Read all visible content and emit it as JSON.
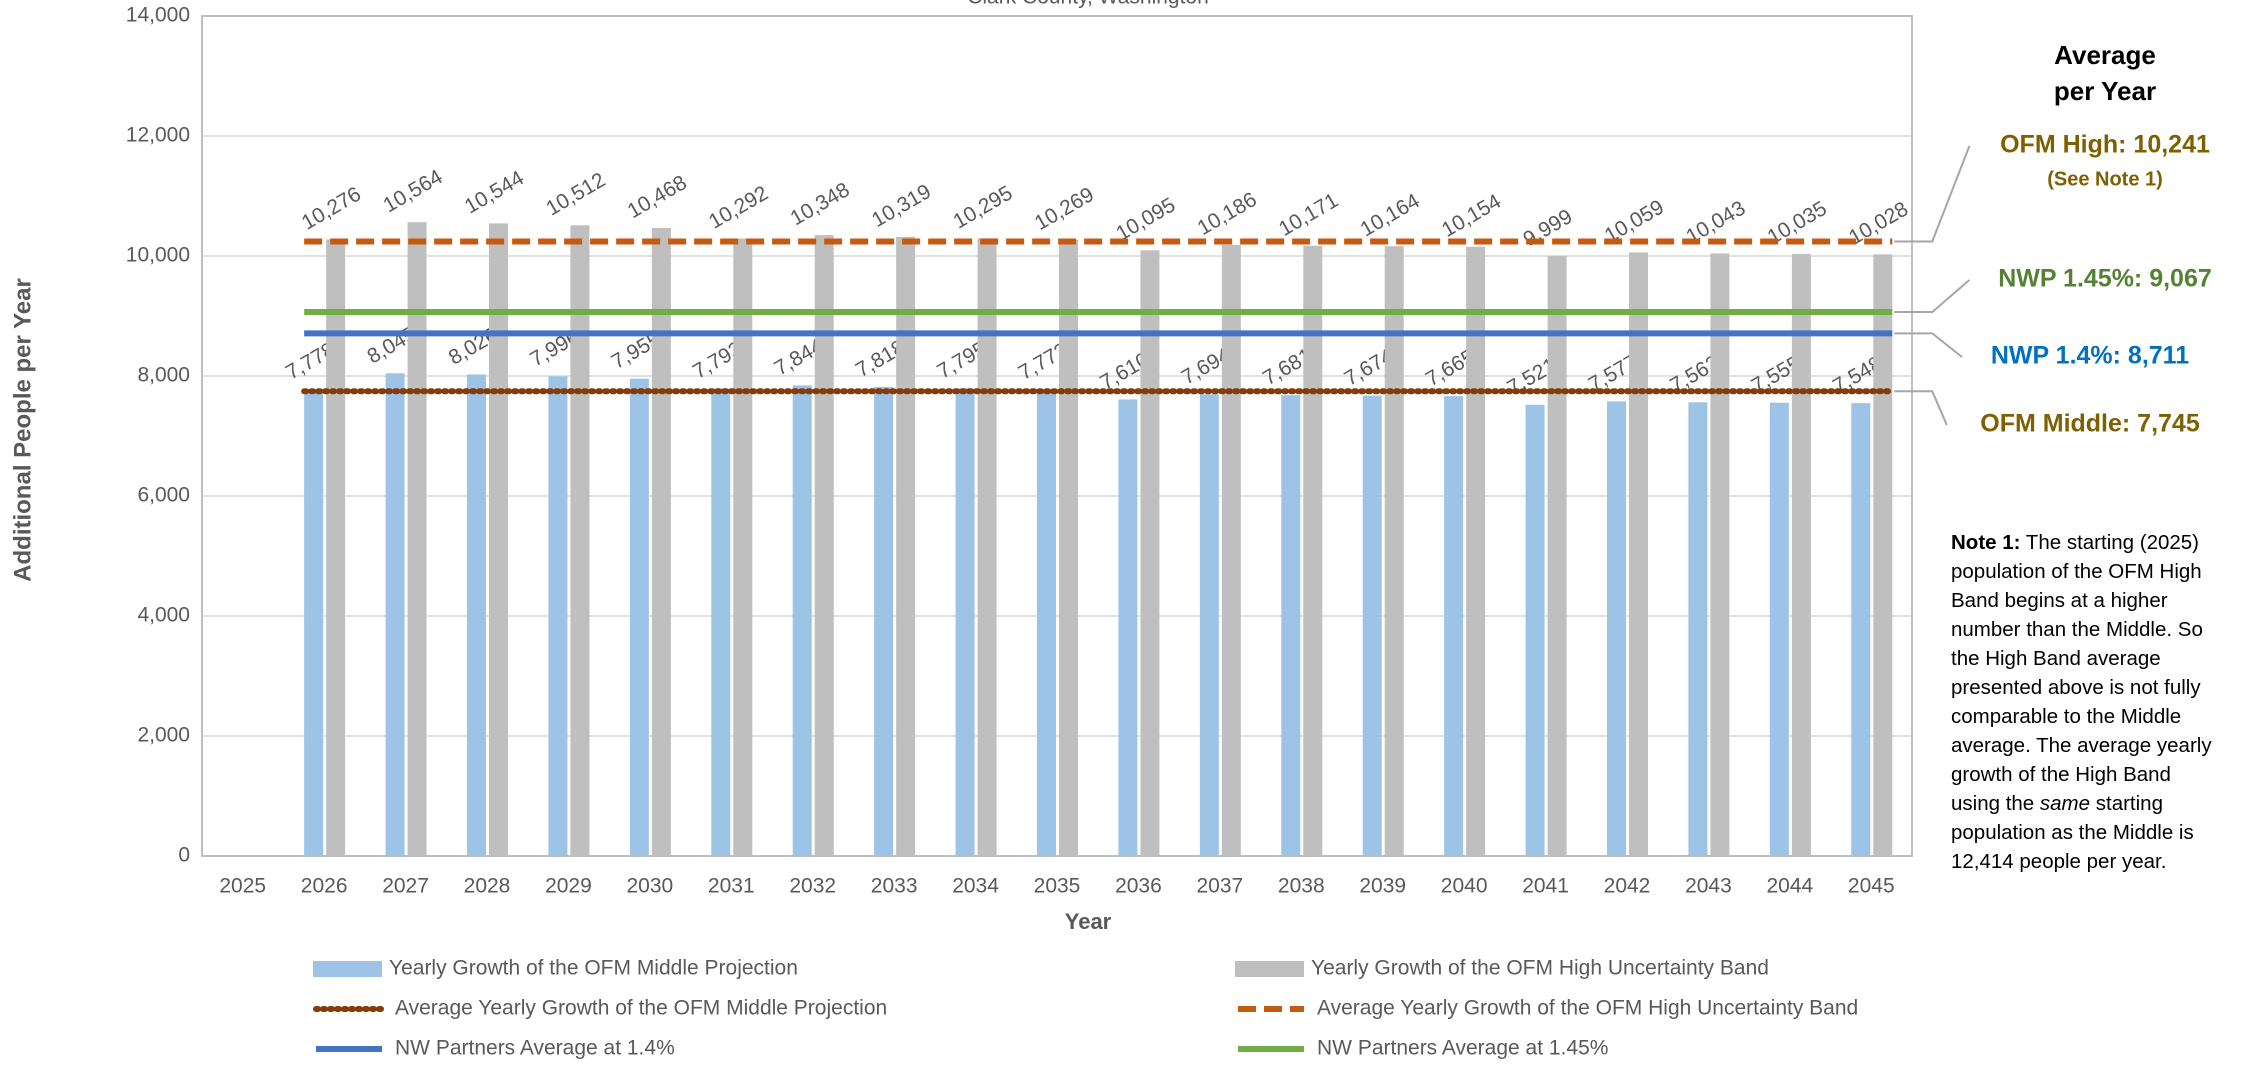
{
  "chart_data": {
    "type": "bar",
    "subtitle": "Clark County, Washington",
    "x_label": "Year",
    "y_label": "Additional People per Year",
    "categories": [
      "2025",
      "2026",
      "2027",
      "2028",
      "2029",
      "2030",
      "2031",
      "2032",
      "2033",
      "2034",
      "2035",
      "2036",
      "2037",
      "2038",
      "2039",
      "2040",
      "2041",
      "2042",
      "2043",
      "2044",
      "2045"
    ],
    "series": [
      {
        "name": "Yearly Growth of the OFM Middle Projection",
        "color": "#9dc3e6",
        "values": [
          null,
          7778,
          8045,
          8026,
          7996,
          7955,
          7793,
          7844,
          7818,
          7795,
          7772,
          7610,
          7694,
          7681,
          7674,
          7665,
          7521,
          7577,
          7562,
          7555,
          7548
        ],
        "value_labels": [
          null,
          "7,778",
          "8,045",
          "8,026",
          "7,996",
          "7,955",
          "7,793",
          "7,844",
          "7,818",
          "7,795",
          "7,772",
          "7,610",
          "7,694",
          "7,681",
          "7,674",
          "7,665",
          "7,521",
          "7,577",
          "7,562",
          "7,555",
          "7,548"
        ]
      },
      {
        "name": "Yearly Growth of the OFM High Uncertainty Band",
        "color": "#bfbfbf",
        "values": [
          null,
          10276,
          10564,
          10544,
          10512,
          10468,
          10292,
          10348,
          10319,
          10295,
          10269,
          10095,
          10186,
          10171,
          10164,
          10154,
          9999,
          10059,
          10043,
          10035,
          10028
        ],
        "value_labels": [
          null,
          "10,276",
          "10,564",
          "10,544",
          "10,512",
          "10,468",
          "10,292",
          "10,348",
          "10,319",
          "10,295",
          "10,269",
          "10,095",
          "10,186",
          "10,171",
          "10,164",
          "10,154",
          "9,999",
          "10,059",
          "10,043",
          "10,035",
          "10,028"
        ]
      }
    ],
    "lines": [
      {
        "name": "Average Yearly Growth of the OFM Middle Projection",
        "color": "#843c0c",
        "dash": "dotted",
        "value": 7745,
        "label": "OFM Middle: 7,745",
        "label_color": "#7f6000"
      },
      {
        "name": "Average Yearly Growth of the OFM High Uncertainty Band",
        "color": "#c55a11",
        "dash": "dashed",
        "value": 10241,
        "label": "OFM High: 10,241",
        "sublabel": "(See Note 1)",
        "label_color": "#7f6000"
      },
      {
        "name": "NW Partners Average at 1.4%",
        "color": "#4472c4",
        "dash": "solid",
        "value": 8711,
        "label": "NWP 1.4%: 8,711",
        "label_color": "#0070c0"
      },
      {
        "name": "NW Partners Average at 1.45%",
        "color": "#70ad47",
        "dash": "solid",
        "value": 9067,
        "label": "NWP 1.45%: 9,067",
        "label_color": "#548235"
      }
    ],
    "side_title": [
      "Average",
      "per Year"
    ],
    "note": [
      "Note 1:",
      " The starting (2025) population of the OFM High Band begins at a higher number than the Middle.  So the High Band average presented above is not fully comparable to the Middle average.  The average yearly growth of the High Band using the ",
      "same",
      " starting population as the Middle is 12,414 people per year."
    ],
    "ylim": [
      0,
      14000
    ],
    "yticks": [
      0,
      {
        "value": 2000,
        "label": "2,000"
      },
      {
        "value": 4000,
        "label": "4,000"
      },
      {
        "value": 6000,
        "label": "6,000"
      },
      {
        "value": 8000,
        "label": "8,000"
      },
      {
        "value": 10000,
        "label": "10,000"
      },
      {
        "value": 12000,
        "label": "12,000"
      },
      {
        "value": 14000,
        "label": "14,000"
      }
    ],
    "grid": true
  }
}
